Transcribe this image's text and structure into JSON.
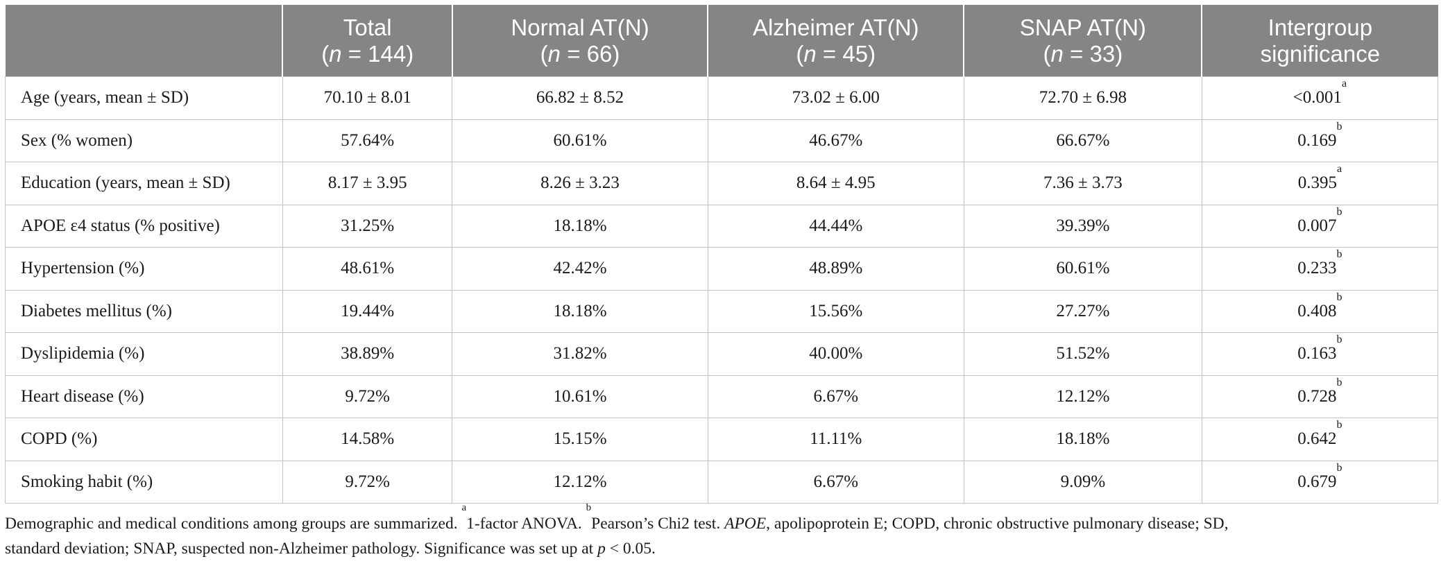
{
  "table": {
    "headers": [
      {
        "label": "",
        "n_prefix": "",
        "n_var": "",
        "n_value": ""
      },
      {
        "label": "Total",
        "n_prefix": "(",
        "n_var": "n",
        "n_value": " = 144)"
      },
      {
        "label": "Normal AT(N)",
        "n_prefix": "(",
        "n_var": "n",
        "n_value": " = 66)"
      },
      {
        "label": "Alzheimer AT(N)",
        "n_prefix": "(",
        "n_var": "n",
        "n_value": " = 45)"
      },
      {
        "label": "SNAP AT(N)",
        "n_prefix": "(",
        "n_var": "n",
        "n_value": " = 33)"
      },
      {
        "label": "Intergroup",
        "n_prefix": "significance",
        "n_var": "",
        "n_value": ""
      }
    ],
    "rows": [
      {
        "variable": "Age (years, mean ± SD)",
        "total": "70.10 ± 8.01",
        "normal": "66.82 ± 8.52",
        "alzheimer": "73.02 ± 6.00",
        "snap": "72.70 ± 6.98",
        "p": "<0.001",
        "p_sup": "a"
      },
      {
        "variable": "Sex (% women)",
        "total": "57.64%",
        "normal": "60.61%",
        "alzheimer": "46.67%",
        "snap": "66.67%",
        "p": "0.169",
        "p_sup": "b"
      },
      {
        "variable": "Education (years, mean ± SD)",
        "total": "8.17 ± 3.95",
        "normal": "8.26 ± 3.23",
        "alzheimer": "8.64 ± 4.95",
        "snap": "7.36 ± 3.73",
        "p": "0.395",
        "p_sup": "a"
      },
      {
        "variable": "APOE ε4 status (% positive)",
        "total": "31.25%",
        "normal": "18.18%",
        "alzheimer": "44.44%",
        "snap": "39.39%",
        "p": "0.007",
        "p_sup": "b"
      },
      {
        "variable": "Hypertension (%)",
        "total": "48.61%",
        "normal": "42.42%",
        "alzheimer": "48.89%",
        "snap": "60.61%",
        "p": "0.233",
        "p_sup": "b"
      },
      {
        "variable": "Diabetes mellitus (%)",
        "total": "19.44%",
        "normal": "18.18%",
        "alzheimer": "15.56%",
        "snap": "27.27%",
        "p": "0.408",
        "p_sup": "b"
      },
      {
        "variable": "Dyslipidemia (%)",
        "total": "38.89%",
        "normal": "31.82%",
        "alzheimer": "40.00%",
        "snap": "51.52%",
        "p": "0.163",
        "p_sup": "b"
      },
      {
        "variable": "Heart disease (%)",
        "total": "9.72%",
        "normal": "10.61%",
        "alzheimer": "6.67%",
        "snap": "12.12%",
        "p": "0.728",
        "p_sup": "b"
      },
      {
        "variable": "COPD (%)",
        "total": "14.58%",
        "normal": "15.15%",
        "alzheimer": "11.11%",
        "snap": "18.18%",
        "p": "0.642",
        "p_sup": "b"
      },
      {
        "variable": "Smoking habit (%)",
        "total": "9.72%",
        "normal": "12.12%",
        "alzheimer": "6.67%",
        "snap": "9.09%",
        "p": "0.679",
        "p_sup": "b"
      }
    ]
  },
  "footnote": {
    "intro": "Demographic and medical conditions among groups are summarized. ",
    "sup_a": "a",
    "a_text": "1-factor ANOVA. ",
    "sup_b": "b",
    "b_text": "Pearson’s Chi2 test. ",
    "apoe_term": "APOE",
    "rest_line1": ", apolipoprotein E; COPD, chronic obstructive pulmonary disease; SD,",
    "line2_start": "standard deviation; SNAP, suspected non-Alzheimer pathology. Significance was set up at ",
    "p_var": "p",
    "p_threshold": " < 0.05."
  }
}
